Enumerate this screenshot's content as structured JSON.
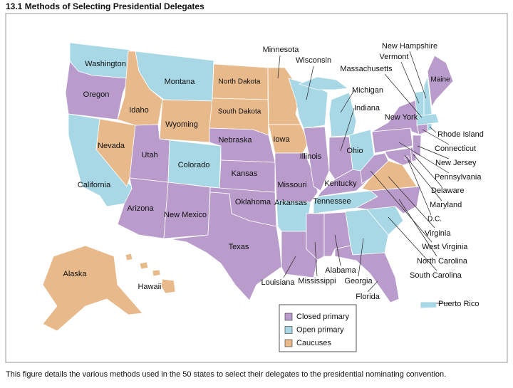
{
  "title": "13.1  Methods of Selecting Presidential Delegates",
  "caption": "This figure details the various methods used in the 50 states to select their delegates to the presidential nominating convention.",
  "legend": [
    {
      "label": "Closed primary",
      "color": "#b99ccb"
    },
    {
      "label": "Open primary",
      "color": "#a8d8e6"
    },
    {
      "label": "Caucuses",
      "color": "#e8b98b"
    }
  ],
  "states": [
    {
      "name": "Washington",
      "color": "#a8d8e6"
    },
    {
      "name": "Oregon",
      "color": "#b99ccb"
    },
    {
      "name": "California",
      "color": "#a8d8e6"
    },
    {
      "name": "Nevada",
      "color": "#e8b98b"
    },
    {
      "name": "Idaho",
      "color": "#e8b98b"
    },
    {
      "name": "Montana",
      "color": "#a8d8e6"
    },
    {
      "name": "Wyoming",
      "color": "#e8b98b"
    },
    {
      "name": "Utah",
      "color": "#b99ccb"
    },
    {
      "name": "Arizona",
      "color": "#b99ccb"
    },
    {
      "name": "Colorado",
      "color": "#a8d8e6"
    },
    {
      "name": "New Mexico",
      "color": "#b99ccb"
    },
    {
      "name": "North Dakota",
      "color": "#e8b98b"
    },
    {
      "name": "South Dakota",
      "color": "#e8b98b"
    },
    {
      "name": "Nebraska",
      "color": "#b99ccb"
    },
    {
      "name": "Kansas",
      "color": "#b99ccb"
    },
    {
      "name": "Oklahoma",
      "color": "#b99ccb"
    },
    {
      "name": "Texas",
      "color": "#b99ccb"
    },
    {
      "name": "Minnesota",
      "color": "#e8b98b"
    },
    {
      "name": "Iowa",
      "color": "#e8b98b"
    },
    {
      "name": "Missouri",
      "color": "#b99ccb"
    },
    {
      "name": "Arkansas",
      "color": "#a8d8e6"
    },
    {
      "name": "Louisiana",
      "color": "#b99ccb"
    },
    {
      "name": "Wisconsin",
      "color": "#a8d8e6"
    },
    {
      "name": "Illinois",
      "color": "#b99ccb"
    },
    {
      "name": "Michigan",
      "color": "#a8d8e6"
    },
    {
      "name": "Indiana",
      "color": "#b99ccb"
    },
    {
      "name": "Ohio",
      "color": "#a8d8e6"
    },
    {
      "name": "Kentucky",
      "color": "#b99ccb"
    },
    {
      "name": "Tennessee",
      "color": "#a8d8e6"
    },
    {
      "name": "Mississippi",
      "color": "#b99ccb"
    },
    {
      "name": "Alabama",
      "color": "#b99ccb"
    },
    {
      "name": "Georgia",
      "color": "#a8d8e6"
    },
    {
      "name": "Florida",
      "color": "#b99ccb"
    },
    {
      "name": "South Carolina",
      "color": "#a8d8e6"
    },
    {
      "name": "North Carolina",
      "color": "#b99ccb"
    },
    {
      "name": "Virginia",
      "color": "#e8b98b"
    },
    {
      "name": "West Virginia",
      "color": "#b99ccb"
    },
    {
      "name": "Pennsylvania",
      "color": "#b99ccb"
    },
    {
      "name": "New York",
      "color": "#b99ccb"
    },
    {
      "name": "Maryland",
      "color": "#b99ccb"
    },
    {
      "name": "Delaware",
      "color": "#b99ccb"
    },
    {
      "name": "New Jersey",
      "color": "#b99ccb"
    },
    {
      "name": "Connecticut",
      "color": "#b99ccb"
    },
    {
      "name": "Rhode Island",
      "color": "#a8d8e6"
    },
    {
      "name": "Massachusetts",
      "color": "#a8d8e6"
    },
    {
      "name": "Vermont",
      "color": "#a8d8e6"
    },
    {
      "name": "New Hampshire",
      "color": "#a8d8e6"
    },
    {
      "name": "Maine",
      "color": "#b99ccb"
    },
    {
      "name": "Alaska",
      "color": "#e8b98b"
    },
    {
      "name": "Hawaii",
      "color": "#e8b98b"
    },
    {
      "name": "D.C.",
      "color": "#b99ccb"
    },
    {
      "name": "Puerto Rico",
      "color": "#a8d8e6"
    }
  ]
}
